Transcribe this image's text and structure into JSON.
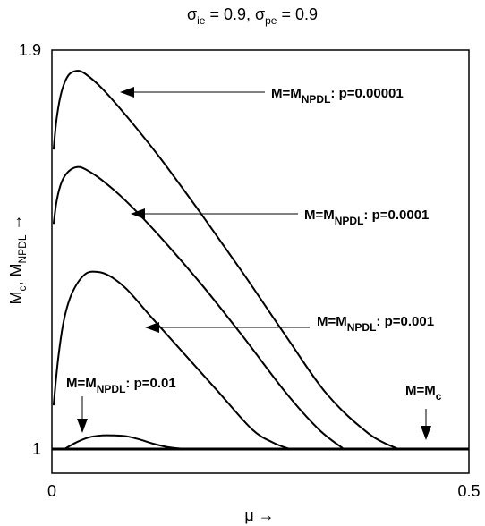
{
  "chart_data": {
    "type": "line",
    "title": {
      "pre": "σ",
      "sub1": "ie",
      "mid": " = 0.9, σ",
      "sub2": "pe",
      "post": " = 0.9"
    },
    "xlabel": "μ →",
    "ylabel": {
      "pre": "M",
      "sub1": "c",
      "mid": ", M",
      "sub2": "NPDL",
      "post": " →"
    },
    "xlim": [
      0,
      0.5
    ],
    "ylim": [
      1,
      1.9
    ],
    "x_ticks": [
      "0",
      "0.5"
    ],
    "y_ticks": [
      "1",
      "1.9"
    ],
    "grid": false,
    "series": [
      {
        "label_pre": "M=M",
        "label_sub": "NPDL",
        "label_post": ": p=0.00001",
        "x": [
          0.002,
          0.006,
          0.012,
          0.02,
          0.03,
          0.04,
          0.06,
          0.09,
          0.13,
          0.18,
          0.23,
          0.28,
          0.33,
          0.38,
          0.415
        ],
        "y": [
          1.685,
          1.76,
          1.82,
          1.855,
          1.865,
          1.858,
          1.825,
          1.76,
          1.665,
          1.535,
          1.4,
          1.26,
          1.125,
          1.035,
          1.0
        ]
      },
      {
        "label_pre": "M=M",
        "label_sub": "NPDL",
        "label_post": ": p=0.0001",
        "x": [
          0.002,
          0.006,
          0.012,
          0.02,
          0.03,
          0.04,
          0.06,
          0.09,
          0.13,
          0.18,
          0.23,
          0.28,
          0.32,
          0.35
        ],
        "y": [
          1.515,
          1.57,
          1.612,
          1.635,
          1.645,
          1.64,
          1.615,
          1.565,
          1.485,
          1.375,
          1.255,
          1.13,
          1.045,
          1.0
        ]
      },
      {
        "label_pre": "M=M",
        "label_sub": "NPDL",
        "label_post": ": p=0.001",
        "x": [
          0.002,
          0.008,
          0.015,
          0.025,
          0.04,
          0.055,
          0.07,
          0.09,
          0.12,
          0.16,
          0.2,
          0.24,
          0.265,
          0.285
        ],
        "y": [
          1.1,
          1.215,
          1.3,
          1.36,
          1.4,
          1.405,
          1.395,
          1.365,
          1.3,
          1.215,
          1.13,
          1.045,
          1.015,
          1.0
        ]
      },
      {
        "label_pre": "M=M",
        "label_sub": "NPDL",
        "label_post": ": p=0.01",
        "x": [
          0.015,
          0.03,
          0.045,
          0.06,
          0.075,
          0.09,
          0.105,
          0.12,
          0.14,
          0.16
        ],
        "y": [
          1.0,
          1.016,
          1.027,
          1.031,
          1.031,
          1.029,
          1.022,
          1.013,
          1.004,
          1.0
        ]
      },
      {
        "label_pre": "M=M",
        "label_sub": "c",
        "label_post": "",
        "x": [
          0,
          0.5
        ],
        "y": [
          1.0,
          1.0
        ]
      }
    ],
    "annotations": {
      "p00001": {
        "pre": "M=M",
        "sub": "NPDL",
        "post": ": p=0.00001"
      },
      "p0001": {
        "pre": "M=M",
        "sub": "NPDL",
        "post": ": p=0.0001"
      },
      "p001": {
        "pre": "M=M",
        "sub": "NPDL",
        "post": ": p=0.001"
      },
      "p01": {
        "pre": "M=M",
        "sub": "NPDL",
        "post": ": p=0.01"
      },
      "mc": {
        "pre": "M=M",
        "sub": "c",
        "post": ""
      }
    }
  }
}
